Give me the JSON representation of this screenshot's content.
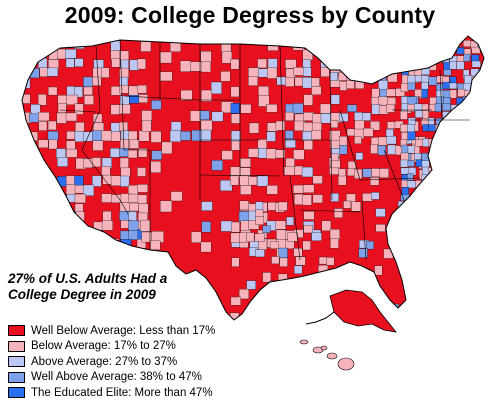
{
  "title": "2009: College Degress by County",
  "note": {
    "line1": "27% of U.S. Adults Had a",
    "line2": "College Degree in 2009"
  },
  "colors": {
    "well_below": "#e8101e",
    "below": "#f7b3bb",
    "above": "#bcc8f3",
    "well_above": "#7da2ea",
    "elite": "#2a6ff0",
    "border": "#000000",
    "background": "#ffffff"
  },
  "legend": [
    {
      "label": "Well Below Average: Less than 17%",
      "color": "#e8101e"
    },
    {
      "label": "Below Average: 17% to 27%",
      "color": "#f7b3bb"
    },
    {
      "label": "Above Average: 27% to 37%",
      "color": "#bcc8f3"
    },
    {
      "label": "Well Above Average: 38% to 47%",
      "color": "#7da2ea"
    },
    {
      "label": "The Educated Elite: More than 47%",
      "color": "#2a6ff0"
    }
  ]
}
